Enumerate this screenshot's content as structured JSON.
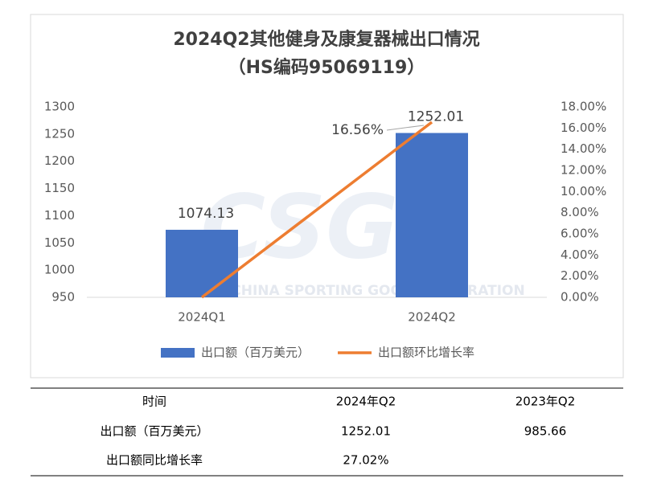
{
  "chart_data": {
    "type": "bar_line",
    "title": "2024Q2其他健身及康复器械出口情况",
    "subtitle": "（HS编码95069119）",
    "watermark_logo": "CSGF",
    "watermark": "CHINA SPORTING GOODS FEDERATION",
    "categories": [
      "2024Q1",
      "2024Q2"
    ],
    "series": [
      {
        "name": "出口额（百万美元）",
        "type": "bar",
        "color": "#4472c4",
        "values": [
          1074.13,
          1252.01
        ]
      },
      {
        "name": "出口额环比增长率",
        "type": "line",
        "axis": "y2",
        "color": "#ed7d31",
        "values": [
          0,
          16.56
        ],
        "value_labels": [
          null,
          "16.56%"
        ]
      }
    ],
    "ylim": [
      950,
      1300
    ],
    "yticks": [
      950,
      1000,
      1050,
      1100,
      1150,
      1200,
      1250,
      1300
    ],
    "y2lim": [
      0,
      18
    ],
    "y2ticks": [
      {
        "value": 0,
        "label": "0.00%"
      },
      {
        "value": 2,
        "label": "2.00%"
      },
      {
        "value": 4,
        "label": "4.00%"
      },
      {
        "value": 6,
        "label": "6.00%"
      },
      {
        "value": 8,
        "label": "8.00%"
      },
      {
        "value": 10,
        "label": "10.00%"
      },
      {
        "value": 12,
        "label": "12.00%"
      },
      {
        "value": 14,
        "label": "14.00%"
      },
      {
        "value": 16,
        "label": "16.00%"
      },
      {
        "value": 18,
        "label": "18.00%"
      }
    ],
    "grid": false,
    "legend": "bottom"
  },
  "table": {
    "header": [
      "时间",
      "2024年Q2",
      "2023年Q2"
    ],
    "rows": [
      [
        "出口额（百万美元）",
        "1252.01",
        "985.66"
      ],
      [
        "出口额同比增长率",
        "27.02%"
      ]
    ]
  }
}
